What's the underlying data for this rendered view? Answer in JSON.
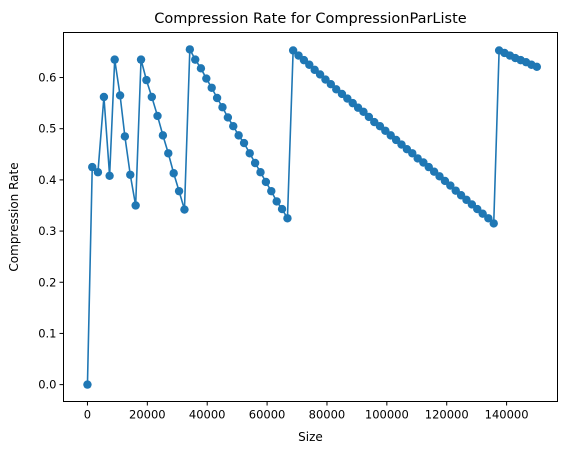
{
  "chart_data": {
    "type": "line",
    "title": "Compression Rate for CompressionParListe",
    "xlabel": "Size",
    "ylabel": "Compression Rate",
    "xlim": [
      -8000,
      157000
    ],
    "ylim": [
      -0.033,
      0.688
    ],
    "xticks": [
      0,
      20000,
      40000,
      60000,
      80000,
      100000,
      120000,
      140000
    ],
    "xtick_labels": [
      "0",
      "20000",
      "40000",
      "60000",
      "80000",
      "100000",
      "120000",
      "140000"
    ],
    "yticks": [
      0.0,
      0.1,
      0.2,
      0.3,
      0.4,
      0.5,
      0.6
    ],
    "ytick_labels": [
      "0.0",
      "0.1",
      "0.2",
      "0.3",
      "0.4",
      "0.5",
      "0.6"
    ],
    "grid": false,
    "marker": "circle",
    "color": "#1f77b4",
    "series": [
      {
        "x": [
          0,
          1600,
          3500,
          5500,
          7400,
          9100,
          10900,
          12500,
          14300,
          16100,
          17900,
          19700,
          21500,
          23400,
          25200,
          27000,
          28800,
          30600,
          32400,
          34200,
          36000,
          37900,
          39700,
          41500,
          43300,
          45100,
          46900,
          48700,
          50500,
          52300,
          54200,
          56000,
          57800,
          59600,
          61400,
          63200,
          65000,
          66800,
          68700,
          70500,
          72300,
          74100,
          75900,
          77700,
          79500,
          81300,
          83100,
          85000,
          86800,
          88600,
          90400,
          92200,
          94000,
          95800,
          97700,
          99500,
          101300,
          103100,
          104900,
          106700,
          108500,
          110300,
          112200,
          114000,
          115800,
          117600,
          119400,
          121200,
          123000,
          124800,
          126600,
          128400,
          130200,
          132000,
          133900,
          135700,
          137500,
          139300,
          141100,
          142900,
          144700,
          146500,
          148300,
          150100
        ],
        "values": [
          0.0,
          0.425,
          0.415,
          0.562,
          0.408,
          0.635,
          0.565,
          0.485,
          0.41,
          0.35,
          0.635,
          0.595,
          0.562,
          0.525,
          0.487,
          0.452,
          0.413,
          0.378,
          0.342,
          0.655,
          0.635,
          0.618,
          0.598,
          0.58,
          0.56,
          0.542,
          0.522,
          0.505,
          0.487,
          0.472,
          0.452,
          0.433,
          0.415,
          0.396,
          0.378,
          0.358,
          0.343,
          0.325,
          0.653,
          0.643,
          0.634,
          0.625,
          0.615,
          0.606,
          0.596,
          0.587,
          0.577,
          0.568,
          0.559,
          0.55,
          0.541,
          0.533,
          0.523,
          0.513,
          0.505,
          0.496,
          0.487,
          0.478,
          0.469,
          0.46,
          0.452,
          0.442,
          0.434,
          0.425,
          0.416,
          0.407,
          0.398,
          0.389,
          0.379,
          0.37,
          0.361,
          0.352,
          0.343,
          0.334,
          0.325,
          0.315,
          0.653,
          0.648,
          0.643,
          0.638,
          0.634,
          0.63,
          0.625,
          0.621
        ]
      }
    ]
  }
}
